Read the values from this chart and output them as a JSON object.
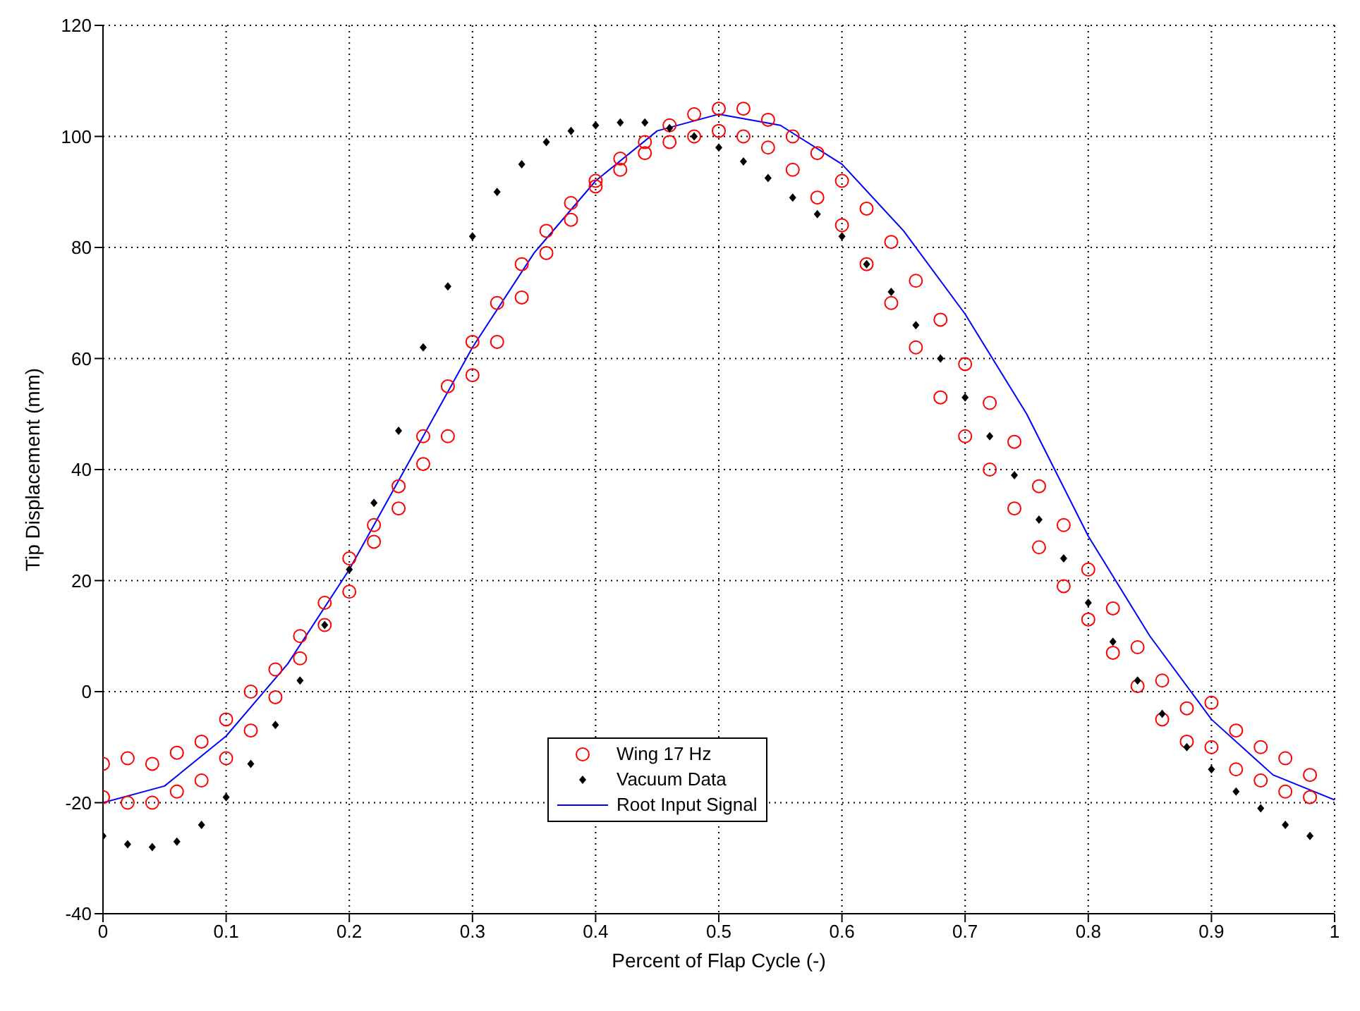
{
  "chart_data": {
    "type": "line",
    "xlabel": "Percent of Flap Cycle (-)",
    "ylabel": "Tip Displacement (mm)",
    "xlim": [
      0,
      1
    ],
    "xticks": [
      0,
      0.1,
      0.2,
      0.3,
      0.4,
      0.5,
      0.6,
      0.7,
      0.8,
      0.9,
      1
    ],
    "ylim": [
      -40,
      120
    ],
    "yticks": [
      -40,
      -20,
      0,
      20,
      40,
      60,
      80,
      100,
      120
    ],
    "grid": true,
    "legend": "bottom",
    "series": [
      {
        "name": "Wing 17 Hz",
        "type": "scatter",
        "marker": "circle",
        "color": "#ff0000",
        "x": [
          0,
          0,
          0.02,
          0.02,
          0.04,
          0.04,
          0.06,
          0.06,
          0.08,
          0.08,
          0.1,
          0.1,
          0.12,
          0.12,
          0.14,
          0.14,
          0.16,
          0.16,
          0.18,
          0.18,
          0.2,
          0.2,
          0.22,
          0.22,
          0.24,
          0.24,
          0.26,
          0.26,
          0.28,
          0.28,
          0.3,
          0.3,
          0.32,
          0.32,
          0.34,
          0.34,
          0.36,
          0.36,
          0.38,
          0.38,
          0.4,
          0.4,
          0.42,
          0.42,
          0.44,
          0.44,
          0.46,
          0.46,
          0.48,
          0.48,
          0.5,
          0.5,
          0.52,
          0.52,
          0.54,
          0.54,
          0.56,
          0.56,
          0.58,
          0.58,
          0.6,
          0.6,
          0.62,
          0.62,
          0.64,
          0.64,
          0.66,
          0.66,
          0.68,
          0.68,
          0.7,
          0.7,
          0.72,
          0.72,
          0.74,
          0.74,
          0.76,
          0.76,
          0.78,
          0.78,
          0.8,
          0.8,
          0.82,
          0.82,
          0.84,
          0.84,
          0.86,
          0.86,
          0.88,
          0.88,
          0.9,
          0.9,
          0.92,
          0.92,
          0.94,
          0.94,
          0.96,
          0.96,
          0.98,
          0.98
        ],
        "values": [
          -13,
          -19,
          -12,
          -20,
          -13,
          -20,
          -11,
          -18,
          -9,
          -16,
          -5,
          -12,
          0,
          -7,
          4,
          -1,
          10,
          6,
          16,
          12,
          24,
          18,
          30,
          27,
          37,
          33,
          46,
          41,
          55,
          46,
          63,
          57,
          70,
          63,
          77,
          71,
          83,
          79,
          88,
          85,
          92,
          91,
          96,
          94,
          99,
          97,
          102,
          99,
          104,
          100,
          105,
          101,
          105,
          100,
          103,
          98,
          100,
          94,
          97,
          89,
          92,
          84,
          87,
          77,
          81,
          70,
          74,
          62,
          67,
          53,
          59,
          46,
          52,
          40,
          45,
          33,
          37,
          26,
          30,
          19,
          22,
          13,
          15,
          7,
          8,
          1,
          2,
          -5,
          -3,
          -9,
          -2,
          -10,
          -7,
          -14,
          -10,
          -16,
          -12,
          -18,
          -15,
          -19
        ]
      },
      {
        "name": "Vacuum Data",
        "type": "scatter",
        "marker": "diamond",
        "color": "#000000",
        "x": [
          0,
          0.02,
          0.04,
          0.06,
          0.08,
          0.1,
          0.12,
          0.14,
          0.16,
          0.18,
          0.2,
          0.22,
          0.24,
          0.26,
          0.28,
          0.3,
          0.32,
          0.34,
          0.36,
          0.38,
          0.4,
          0.42,
          0.44,
          0.46,
          0.48,
          0.5,
          0.52,
          0.54,
          0.56,
          0.58,
          0.6,
          0.62,
          0.64,
          0.66,
          0.68,
          0.7,
          0.72,
          0.74,
          0.76,
          0.78,
          0.8,
          0.82,
          0.84,
          0.86,
          0.88,
          0.9,
          0.92,
          0.94,
          0.96,
          0.98
        ],
        "values": [
          -26,
          -27.5,
          -28,
          -27,
          -24,
          -19,
          -13,
          -6,
          2,
          12,
          22,
          34,
          47,
          62,
          73,
          82,
          90,
          95,
          99,
          101,
          102,
          102.5,
          102.5,
          101.5,
          100,
          98,
          95.5,
          92.5,
          89,
          86,
          82,
          77,
          72,
          66,
          60,
          53,
          46,
          39,
          31,
          24,
          16,
          9,
          2,
          -4,
          -10,
          -14,
          -18,
          -21,
          -24,
          -26
        ]
      },
      {
        "name": "Root Input Signal",
        "marker": "none",
        "color": "#0000ff",
        "x": [
          0,
          0.05,
          0.1,
          0.15,
          0.2,
          0.25,
          0.3,
          0.35,
          0.4,
          0.45,
          0.5,
          0.55,
          0.6,
          0.65,
          0.7,
          0.75,
          0.8,
          0.85,
          0.9,
          0.95,
          1
        ],
        "values": [
          -20,
          -17,
          -8,
          5,
          22,
          42,
          62,
          79,
          92,
          101,
          104,
          102,
          95,
          83,
          68,
          50,
          28,
          10,
          -5,
          -15,
          -19.5
        ]
      }
    ]
  }
}
